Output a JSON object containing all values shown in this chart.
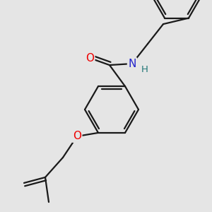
{
  "background_color": "#e5e5e5",
  "bond_color": "#1a1a1a",
  "bond_width": 1.6,
  "dbo": 0.012,
  "atom_colors": {
    "O": "#ee0000",
    "N": "#2222cc",
    "H": "#227777",
    "C": "#1a1a1a"
  },
  "font_size_atom": 11,
  "font_size_H": 9.5
}
